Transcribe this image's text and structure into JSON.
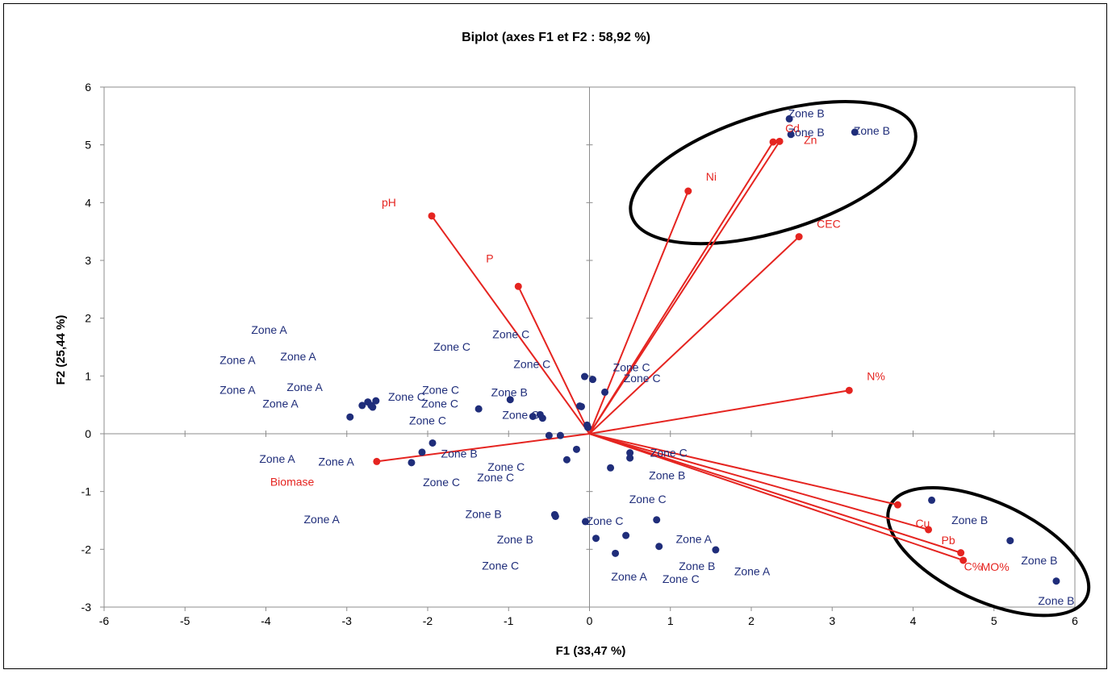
{
  "chart_data": {
    "type": "scatter",
    "subtype": "biplot",
    "title": "Biplot (axes F1 et F2 : 58,92 %)",
    "xlabel": "F1 (33,47 %)",
    "ylabel": "F2 (25,44 %)",
    "xlim": [
      -6,
      6
    ],
    "ylim": [
      -3,
      6
    ],
    "x_ticks": [
      "-6",
      "-5",
      "-4",
      "-3",
      "-2",
      "-1",
      "0",
      "1",
      "2",
      "3",
      "4",
      "5",
      "6"
    ],
    "y_ticks": [
      "6",
      "5",
      "4",
      "3",
      "2",
      "1",
      "0",
      "-1",
      "-2",
      "-3"
    ],
    "grid": false,
    "colors": {
      "observations": "#1f2d7a",
      "variables": "#e52420",
      "ellipse": "#000000"
    },
    "variables": [
      {
        "name": "pH",
        "x": -1.95,
        "y": 3.77
      },
      {
        "name": "P",
        "x": -0.88,
        "y": 2.55
      },
      {
        "name": "Ni",
        "x": 1.22,
        "y": 4.2
      },
      {
        "name": "Cd",
        "x": 2.27,
        "y": 5.05
      },
      {
        "name": "Zn",
        "x": 2.35,
        "y": 5.06
      },
      {
        "name": "CEC",
        "x": 2.59,
        "y": 3.41
      },
      {
        "name": "N%",
        "x": 3.21,
        "y": 0.75
      },
      {
        "name": "Biomase",
        "x": -2.63,
        "y": -0.48
      },
      {
        "name": "Cu",
        "x": 3.81,
        "y": -1.23
      },
      {
        "name": "Pb",
        "x": 4.19,
        "y": -1.66
      },
      {
        "name": "C%",
        "x": 4.59,
        "y": -2.06
      },
      {
        "name": "MO%",
        "x": 4.62,
        "y": -2.19
      }
    ],
    "observation_points": [
      [
        2.47,
        5.45
      ],
      [
        2.49,
        5.18
      ],
      [
        3.28,
        5.22
      ],
      [
        4.23,
        -1.15
      ],
      [
        5.2,
        -1.85
      ],
      [
        5.77,
        -2.55
      ],
      [
        -0.06,
        0.99
      ],
      [
        0.04,
        0.94
      ],
      [
        0.19,
        0.72
      ],
      [
        -0.12,
        0.48
      ],
      [
        -0.1,
        0.47
      ],
      [
        -0.03,
        0.15
      ],
      [
        -0.02,
        0.11
      ],
      [
        -2.96,
        0.29
      ],
      [
        -2.81,
        0.49
      ],
      [
        -2.74,
        0.55
      ],
      [
        -2.7,
        0.49
      ],
      [
        -2.68,
        0.46
      ],
      [
        -2.64,
        0.57
      ],
      [
        -1.37,
        0.43
      ],
      [
        -0.98,
        0.59
      ],
      [
        -0.7,
        0.3
      ],
      [
        -0.61,
        0.33
      ],
      [
        -0.58,
        0.27
      ],
      [
        -0.5,
        -0.03
      ],
      [
        -0.36,
        -0.03
      ],
      [
        -2.07,
        -0.32
      ],
      [
        -1.94,
        -0.16
      ],
      [
        -2.2,
        -0.5
      ],
      [
        -0.28,
        -0.45
      ],
      [
        -0.16,
        -0.27
      ],
      [
        0.5,
        -0.33
      ],
      [
        0.5,
        -0.42
      ],
      [
        0.26,
        -0.59
      ],
      [
        0.83,
        -1.49
      ],
      [
        -0.43,
        -1.4
      ],
      [
        -0.42,
        -1.43
      ],
      [
        -0.05,
        -1.52
      ],
      [
        0.08,
        -1.81
      ],
      [
        0.45,
        -1.76
      ],
      [
        0.86,
        -1.95
      ],
      [
        1.56,
        -2.01
      ],
      [
        0.32,
        -2.07
      ]
    ],
    "observation_labels": [
      {
        "text": "Zone B",
        "x": 2.68,
        "y": 5.55
      },
      {
        "text": "Zone B",
        "x": 2.68,
        "y": 5.22
      },
      {
        "text": "Zone B",
        "x": 3.49,
        "y": 5.25
      },
      {
        "text": "Zone B",
        "x": 4.7,
        "y": -1.49
      },
      {
        "text": "Zone B",
        "x": 5.56,
        "y": -2.19
      },
      {
        "text": "Zone B",
        "x": 5.77,
        "y": -2.89
      },
      {
        "text": "Zone A",
        "x": -3.96,
        "y": 1.8
      },
      {
        "text": "Zone A",
        "x": -4.35,
        "y": 1.28
      },
      {
        "text": "Zone A",
        "x": -3.6,
        "y": 1.34
      },
      {
        "text": "Zone A",
        "x": -4.35,
        "y": 0.76
      },
      {
        "text": "Zone A",
        "x": -3.52,
        "y": 0.81
      },
      {
        "text": "Zone A",
        "x": -3.82,
        "y": 0.52
      },
      {
        "text": "Zone A",
        "x": -3.86,
        "y": -0.43
      },
      {
        "text": "Zone A",
        "x": -3.13,
        "y": -0.48
      },
      {
        "text": "Zone A",
        "x": -3.31,
        "y": -1.48
      },
      {
        "text": "Zone A",
        "x": 1.29,
        "y": -1.82
      },
      {
        "text": "Zone A",
        "x": 0.49,
        "y": -2.47
      },
      {
        "text": "Zone A",
        "x": 2.01,
        "y": -2.38
      },
      {
        "text": "Zone C",
        "x": -1.7,
        "y": 1.51
      },
      {
        "text": "Zone C",
        "x": -0.97,
        "y": 1.72
      },
      {
        "text": "Zone C",
        "x": -0.71,
        "y": 1.21
      },
      {
        "text": "Zone C",
        "x": -1.84,
        "y": 0.76
      },
      {
        "text": "Zone C",
        "x": -2.26,
        "y": 0.64
      },
      {
        "text": "Zone C",
        "x": -1.85,
        "y": 0.52
      },
      {
        "text": "Zone C",
        "x": -2.0,
        "y": 0.23
      },
      {
        "text": "Zone C",
        "x": -0.85,
        "y": 0.33
      },
      {
        "text": "Zone C",
        "x": 0.52,
        "y": 1.15
      },
      {
        "text": "Zone C",
        "x": 0.65,
        "y": 0.96
      },
      {
        "text": "Zone C",
        "x": 0.98,
        "y": -0.33
      },
      {
        "text": "Zone C",
        "x": -1.03,
        "y": -0.57
      },
      {
        "text": "Zone C",
        "x": -1.16,
        "y": -0.75
      },
      {
        "text": "Zone C",
        "x": -1.83,
        "y": -0.84
      },
      {
        "text": "Zone C",
        "x": 0.72,
        "y": -1.13
      },
      {
        "text": "Zone C",
        "x": 0.19,
        "y": -1.51
      },
      {
        "text": "Zone C",
        "x": -1.1,
        "y": -2.28
      },
      {
        "text": "Zone C",
        "x": 1.13,
        "y": -2.51
      },
      {
        "text": "Zone B",
        "x": -0.99,
        "y": 0.72
      },
      {
        "text": "Zone B",
        "x": -1.61,
        "y": -0.34
      },
      {
        "text": "Zone B",
        "x": -1.31,
        "y": -1.39
      },
      {
        "text": "Zone B",
        "x": -0.92,
        "y": -1.83
      },
      {
        "text": "Zone B",
        "x": 0.96,
        "y": -0.72
      },
      {
        "text": "Zone B",
        "x": 1.33,
        "y": -2.29
      }
    ],
    "ellipses": [
      {
        "name": "top-right-group",
        "cx": 2.27,
        "cy": 4.52,
        "rx": 1.83,
        "ry": 1.02,
        "angle": -17
      },
      {
        "name": "bottom-right-group",
        "cx": 4.93,
        "cy": -2.04,
        "rx": 1.34,
        "ry": 0.85,
        "angle": 25
      }
    ]
  }
}
